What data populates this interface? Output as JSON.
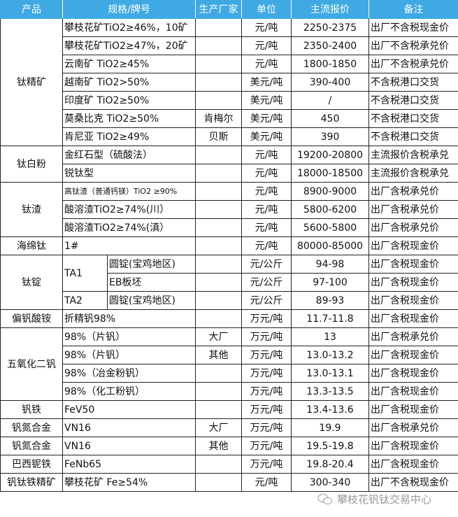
{
  "header": {
    "columns": [
      "产品",
      "规格/牌号",
      "生产厂家",
      "单位",
      "主流报价",
      "备注"
    ],
    "color": "#3fa9e3"
  },
  "groups": [
    {
      "product": "钛精矿",
      "rows": [
        {
          "spec": "攀枝花矿TiO2≥46%，10矿",
          "maker": "",
          "unit": "元/吨",
          "price": "2250-2375",
          "note": "出厂不含税现金价"
        },
        {
          "spec": "攀枝花矿TiO2≥47%，20矿",
          "maker": "",
          "unit": "元/吨",
          "price": "2350-2400",
          "note": "出厂不含税承兑价"
        },
        {
          "spec": "云南矿 TiO2≥45%",
          "maker": "",
          "unit": "元/吨",
          "price": "1800-1850",
          "note": "出厂不含税承兑价"
        },
        {
          "spec": "越南矿 TiO2>50%",
          "maker": "",
          "unit": "美元/吨",
          "price": "390-400",
          "note": "不含税港口交货"
        },
        {
          "spec": "印度矿 TiO2≥50%",
          "maker": "",
          "unit": "美元/吨",
          "price": "/",
          "note": "不含税港口交货"
        },
        {
          "spec": "莫桑比克 TiO2≥50%",
          "maker": "肯梅尔",
          "unit": "美元/吨",
          "price": "450",
          "note": "不含税港口交货"
        },
        {
          "spec": "肯尼亚 TiO2≥49%",
          "maker": "贝斯",
          "unit": "美元/吨",
          "price": "390",
          "note": "不含税港口交货"
        }
      ]
    },
    {
      "product": "钛白粉",
      "rows": [
        {
          "spec": "金红石型（硫酸法）",
          "maker": "",
          "unit": "元/吨",
          "price": "19200-20800",
          "note": "主流报价含税承兑"
        },
        {
          "spec": "锐钛型",
          "maker": "",
          "unit": "元/吨",
          "price": "18000-18500",
          "note": "主流报价含税承兑"
        }
      ]
    },
    {
      "product": "钛渣",
      "rows": [
        {
          "spec": "高钛渣（普通钙镁）TiO2 ≥90%",
          "small": true,
          "maker": "",
          "unit": "元/吨",
          "price": "8900-9000",
          "note": "出厂含税承兑价"
        },
        {
          "spec": "酸溶渣TiO2≥74%(川）",
          "maker": "",
          "unit": "元/吨",
          "price": "5800-6200",
          "note": "出厂含税承兑价"
        },
        {
          "spec": "酸溶渣TiO2≥74%(滇）",
          "maker": "",
          "unit": "元/吨",
          "price": "5600-5800",
          "note": "出厂含税承兑价"
        }
      ]
    },
    {
      "product": "海绵钛",
      "rows": [
        {
          "spec": "1#",
          "maker": "",
          "unit": "元/吨",
          "price": "80000-85000",
          "note": "出厂含税现金价"
        }
      ]
    },
    {
      "product": "钛锭",
      "rows": [
        {
          "grade": "TA1",
          "grade_span": 2,
          "spec": "圆锭(宝鸡地区)",
          "maker": "",
          "unit": "元/公斤",
          "price": "94-98",
          "note": "出厂含税现金价"
        },
        {
          "spec": "EB板坯",
          "maker": "",
          "unit": "元/公斤",
          "price": "97-100",
          "note": "出厂含税现金价"
        },
        {
          "grade": "TA2",
          "grade_span": 1,
          "spec": "圆锭(宝鸡地区)",
          "maker": "",
          "unit": "元/公斤",
          "price": "89-93",
          "note": "出厂含税现金价"
        }
      ]
    },
    {
      "product": "偏钒酸铵",
      "rows": [
        {
          "spec": "折精钒98%",
          "maker": "",
          "unit": "万元/吨",
          "price": "11.7-11.8",
          "note": "出厂含税现金价"
        }
      ]
    },
    {
      "product": "五氧化二钒",
      "rows": [
        {
          "spec": "98%（片钒）",
          "maker": "大厂",
          "unit": "万元/吨",
          "price": "13",
          "note": "出厂含税承兑价"
        },
        {
          "spec": "98%（片钒）",
          "maker": "其他",
          "unit": "万元/吨",
          "price": "13.0-13.2",
          "note": "出厂含税现金价"
        },
        {
          "spec": "98%（冶金粉钒）",
          "maker": "",
          "unit": "万元/吨",
          "price": "13.0-13.1",
          "note": "出厂含税现金价"
        },
        {
          "spec": "98%（化工粉钒）",
          "maker": "",
          "unit": "万元/吨",
          "price": "13.3-13.5",
          "note": "出厂含税现金价"
        }
      ]
    },
    {
      "product": "钒铁",
      "rows": [
        {
          "spec": "FeV50",
          "maker": "",
          "unit": "万元/吨",
          "price": "13.4-13.6",
          "note": "出厂含税现金价"
        }
      ]
    },
    {
      "product": "钒氮合金",
      "rows": [
        {
          "spec": "VN16",
          "maker": "大厂",
          "unit": "万元/吨",
          "price": "19.9",
          "note": "出厂含税承兑价"
        }
      ]
    },
    {
      "product": "钒氮合金",
      "rows": [
        {
          "spec": "VN16",
          "maker": "其他",
          "unit": "万元/吨",
          "price": "19.5-19.8",
          "note": "出厂含税现金价"
        }
      ]
    },
    {
      "product": "巴西铌铁",
      "rows": [
        {
          "spec": "FeNb65",
          "maker": "",
          "unit": "万元/吨",
          "price": "19.8-20.4",
          "note": "出厂含税现金价"
        }
      ]
    },
    {
      "product": "钒钛铁精矿",
      "rows": [
        {
          "spec": "攀枝花矿 Fe≥54%",
          "maker": "",
          "unit": "元/吨",
          "price": "300-340",
          "note": "出厂不含税现金价"
        }
      ]
    }
  ],
  "watermark": {
    "text": "攀枝花钒钛交易中心",
    "icon": "wechat-icon"
  }
}
